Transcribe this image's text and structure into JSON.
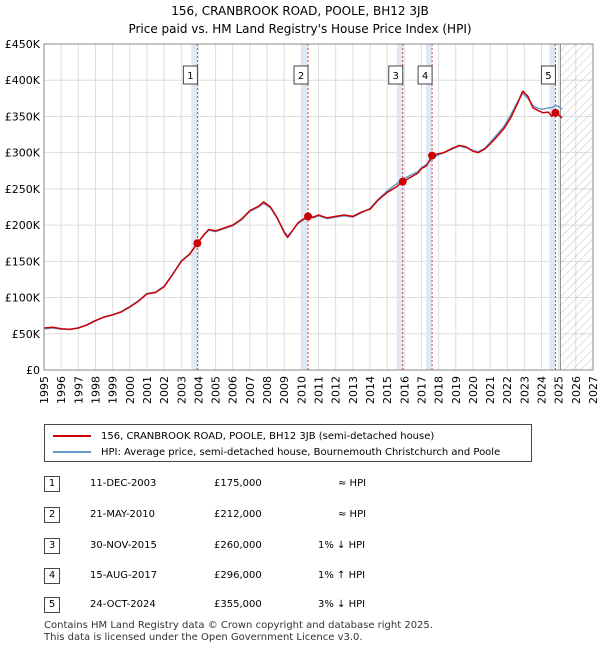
{
  "title": "156, CRANBROOK ROAD, POOLE, BH12 3JB",
  "subtitle": "Price paid vs. HM Land Registry's House Price Index (HPI)",
  "colors": {
    "price_line": "#cc0000",
    "hpi_line": "#6699cc",
    "marker_line": "#cc4444",
    "shade": "#dde6f5",
    "hatch": "#999999",
    "grid": "#dddddd"
  },
  "chart_data": {
    "type": "line",
    "xlim": [
      1995,
      2027
    ],
    "ylim": [
      0,
      450000
    ],
    "x_ticks": [
      "1995",
      "1996",
      "1997",
      "1998",
      "1999",
      "2000",
      "2001",
      "2002",
      "2003",
      "2004",
      "2005",
      "2006",
      "2007",
      "2008",
      "2009",
      "2010",
      "2011",
      "2012",
      "2013",
      "2014",
      "2015",
      "2016",
      "2017",
      "2018",
      "2019",
      "2020",
      "2021",
      "2022",
      "2023",
      "2024",
      "2025",
      "2026",
      "2027"
    ],
    "y_ticks": [
      {
        "value": 0,
        "label": "£0"
      },
      {
        "value": 50000,
        "label": "£50K"
      },
      {
        "value": 100000,
        "label": "£100K"
      },
      {
        "value": 150000,
        "label": "£150K"
      },
      {
        "value": 200000,
        "label": "£200K"
      },
      {
        "value": 250000,
        "label": "£250K"
      },
      {
        "value": 300000,
        "label": "£300K"
      },
      {
        "value": 350000,
        "label": "£350K"
      },
      {
        "value": 400000,
        "label": "£400K"
      },
      {
        "value": 450000,
        "label": "£450K"
      }
    ],
    "grid": true,
    "hatched_from": 2025.1,
    "series": [
      {
        "name": "156, CRANBROOK ROAD, POOLE, BH12 3JB (semi-detached house)",
        "points": [
          [
            1995.0,
            58000
          ],
          [
            1995.5,
            59000
          ],
          [
            1996.0,
            57000
          ],
          [
            1996.5,
            56000
          ],
          [
            1997.0,
            58000
          ],
          [
            1997.5,
            62000
          ],
          [
            1998.0,
            68000
          ],
          [
            1998.5,
            73000
          ],
          [
            1999.0,
            76000
          ],
          [
            1999.5,
            80000
          ],
          [
            2000.0,
            87000
          ],
          [
            2000.5,
            95000
          ],
          [
            2001.0,
            105000
          ],
          [
            2001.5,
            107000
          ],
          [
            2002.0,
            115000
          ],
          [
            2002.5,
            132000
          ],
          [
            2003.0,
            150000
          ],
          [
            2003.5,
            160000
          ],
          [
            2003.94,
            175000
          ],
          [
            2004.3,
            186000
          ],
          [
            2004.6,
            194000
          ],
          [
            2005.0,
            192000
          ],
          [
            2005.5,
            196000
          ],
          [
            2006.0,
            200000
          ],
          [
            2006.5,
            208000
          ],
          [
            2007.0,
            220000
          ],
          [
            2007.5,
            226000
          ],
          [
            2007.8,
            232000
          ],
          [
            2008.2,
            225000
          ],
          [
            2008.6,
            210000
          ],
          [
            2009.0,
            190000
          ],
          [
            2009.2,
            183000
          ],
          [
            2009.5,
            193000
          ],
          [
            2009.8,
            203000
          ],
          [
            2010.1,
            208000
          ],
          [
            2010.39,
            212000
          ],
          [
            2010.7,
            211000
          ],
          [
            2011.0,
            214000
          ],
          [
            2011.5,
            210000
          ],
          [
            2012.0,
            212000
          ],
          [
            2012.5,
            214000
          ],
          [
            2013.0,
            212000
          ],
          [
            2013.5,
            218000
          ],
          [
            2014.0,
            222000
          ],
          [
            2014.5,
            235000
          ],
          [
            2015.0,
            245000
          ],
          [
            2015.5,
            252000
          ],
          [
            2015.91,
            260000
          ],
          [
            2016.3,
            265000
          ],
          [
            2016.8,
            272000
          ],
          [
            2017.0,
            278000
          ],
          [
            2017.3,
            282000
          ],
          [
            2017.62,
            296000
          ],
          [
            2017.9,
            298000
          ],
          [
            2018.3,
            300000
          ],
          [
            2018.8,
            306000
          ],
          [
            2019.2,
            310000
          ],
          [
            2019.6,
            308000
          ],
          [
            2020.0,
            302000
          ],
          [
            2020.3,
            300000
          ],
          [
            2020.7,
            305000
          ],
          [
            2021.0,
            312000
          ],
          [
            2021.4,
            322000
          ],
          [
            2021.8,
            333000
          ],
          [
            2022.2,
            348000
          ],
          [
            2022.6,
            368000
          ],
          [
            2022.9,
            385000
          ],
          [
            2023.2,
            378000
          ],
          [
            2023.5,
            362000
          ],
          [
            2023.8,
            358000
          ],
          [
            2024.1,
            355000
          ],
          [
            2024.4,
            356000
          ],
          [
            2024.6,
            350000
          ],
          [
            2024.81,
            355000
          ],
          [
            2025.0,
            352000
          ],
          [
            2025.2,
            348000
          ]
        ]
      },
      {
        "name": "HPI: Average price, semi-detached house, Bournemouth Christchurch and Poole",
        "points": [
          [
            1995.0,
            57000
          ],
          [
            1995.5,
            58000
          ],
          [
            1996.0,
            56500
          ],
          [
            1996.5,
            56000
          ],
          [
            1997.0,
            58000
          ],
          [
            1997.5,
            62500
          ],
          [
            1998.0,
            68500
          ],
          [
            1998.5,
            73000
          ],
          [
            1999.0,
            76500
          ],
          [
            1999.5,
            80500
          ],
          [
            2000.0,
            87500
          ],
          [
            2000.5,
            95500
          ],
          [
            2001.0,
            105500
          ],
          [
            2001.5,
            107500
          ],
          [
            2002.0,
            115500
          ],
          [
            2002.5,
            132500
          ],
          [
            2003.0,
            150500
          ],
          [
            2003.5,
            160500
          ],
          [
            2003.94,
            175000
          ],
          [
            2004.3,
            186500
          ],
          [
            2004.6,
            193000
          ],
          [
            2005.0,
            191000
          ],
          [
            2005.5,
            195000
          ],
          [
            2006.0,
            199000
          ],
          [
            2006.5,
            207000
          ],
          [
            2007.0,
            219000
          ],
          [
            2007.5,
            225000
          ],
          [
            2007.8,
            230000
          ],
          [
            2008.2,
            224000
          ],
          [
            2008.6,
            209000
          ],
          [
            2009.0,
            191000
          ],
          [
            2009.2,
            185000
          ],
          [
            2009.5,
            193000
          ],
          [
            2009.8,
            202000
          ],
          [
            2010.1,
            207000
          ],
          [
            2010.39,
            211000
          ],
          [
            2010.7,
            210000
          ],
          [
            2011.0,
            213000
          ],
          [
            2011.5,
            209000
          ],
          [
            2012.0,
            211000
          ],
          [
            2012.5,
            213000
          ],
          [
            2013.0,
            211000
          ],
          [
            2013.5,
            217000
          ],
          [
            2014.0,
            223000
          ],
          [
            2014.5,
            236000
          ],
          [
            2015.0,
            247000
          ],
          [
            2015.5,
            256000
          ],
          [
            2015.91,
            263000
          ],
          [
            2016.3,
            268000
          ],
          [
            2016.8,
            274000
          ],
          [
            2017.0,
            279000
          ],
          [
            2017.3,
            284000
          ],
          [
            2017.62,
            292000
          ],
          [
            2017.9,
            296000
          ],
          [
            2018.3,
            300000
          ],
          [
            2018.8,
            305000
          ],
          [
            2019.2,
            309000
          ],
          [
            2019.6,
            307000
          ],
          [
            2020.0,
            303000
          ],
          [
            2020.3,
            301000
          ],
          [
            2020.7,
            306000
          ],
          [
            2021.0,
            314000
          ],
          [
            2021.4,
            325000
          ],
          [
            2021.8,
            336000
          ],
          [
            2022.2,
            352000
          ],
          [
            2022.6,
            370000
          ],
          [
            2022.9,
            382000
          ],
          [
            2023.2,
            375000
          ],
          [
            2023.5,
            365000
          ],
          [
            2023.8,
            361000
          ],
          [
            2024.1,
            360000
          ],
          [
            2024.4,
            362000
          ],
          [
            2024.6,
            362000
          ],
          [
            2024.81,
            365000
          ],
          [
            2025.0,
            364000
          ],
          [
            2025.2,
            360000
          ]
        ]
      }
    ],
    "sales": [
      {
        "label": "1",
        "x": 2003.94,
        "value": 175000
      },
      {
        "label": "2",
        "x": 2010.39,
        "value": 212000
      },
      {
        "label": "3",
        "x": 2015.91,
        "value": 260000
      },
      {
        "label": "4",
        "x": 2017.62,
        "value": 296000
      },
      {
        "label": "5",
        "x": 2024.81,
        "value": 355000
      }
    ]
  },
  "legend": [
    {
      "label": "156, CRANBROOK ROAD, POOLE, BH12 3JB (semi-detached house)"
    },
    {
      "label": "HPI: Average price, semi-detached house, Bournemouth Christchurch and Poole"
    }
  ],
  "transactions": [
    {
      "num": "1",
      "date": "11-DEC-2003",
      "price": "£175,000",
      "hpi": "≈ HPI"
    },
    {
      "num": "2",
      "date": "21-MAY-2010",
      "price": "£212,000",
      "hpi": "≈ HPI"
    },
    {
      "num": "3",
      "date": "30-NOV-2015",
      "price": "£260,000",
      "hpi": "1% ↓ HPI"
    },
    {
      "num": "4",
      "date": "15-AUG-2017",
      "price": "£296,000",
      "hpi": "1% ↑ HPI"
    },
    {
      "num": "5",
      "date": "24-OCT-2024",
      "price": "£355,000",
      "hpi": "3% ↓ HPI"
    }
  ],
  "footer": {
    "line1": "Contains HM Land Registry data © Crown copyright and database right 2025.",
    "line2": "This data is licensed under the Open Government Licence v3.0."
  }
}
